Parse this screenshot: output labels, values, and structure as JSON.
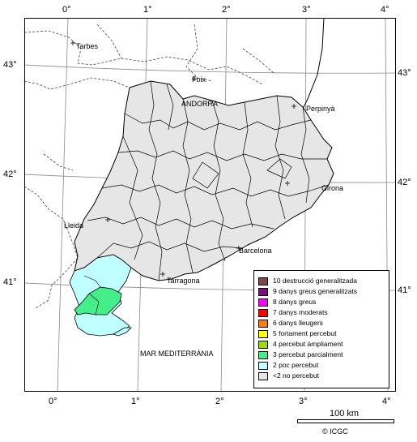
{
  "axes": {
    "top_ticks": [
      "0°",
      "1°",
      "2°",
      "3°",
      "4°"
    ],
    "bottom_ticks": [
      "0°",
      "1°",
      "2°",
      "3°",
      "4°"
    ],
    "left_ticks": [
      "43°",
      "42°",
      "41°"
    ],
    "right_ticks": [
      "43°",
      "42°",
      "41°"
    ]
  },
  "places": {
    "tarbes": "Tarbes",
    "foix": "Foix",
    "andorra": "ANDORRA",
    "perpinya": "Perpinyà",
    "girona": "Girona",
    "lleida": "Lleida",
    "barcelona": "Barcelona",
    "tarragona": "Tarragona",
    "sea": "MAR MEDITERRÀNIA"
  },
  "legend": [
    {
      "label": "10 destrucció generalitzada",
      "color": "#7a4a46"
    },
    {
      "label": "9 danys greus generalitzats",
      "color": "#7a0e7a"
    },
    {
      "label": "8 danys greus",
      "color": "#ff00ff"
    },
    {
      "label": "7 danys moderats",
      "color": "#ff0000"
    },
    {
      "label": "6 danys lleugers",
      "color": "#ff8000"
    },
    {
      "label": "5 fortament percebut",
      "color": "#ffff00"
    },
    {
      "label": "4 percebut àmpliament",
      "color": "#a0e000"
    },
    {
      "label": "3 percebut parcialment",
      "color": "#44ee88"
    },
    {
      "label": "2 poc percebut",
      "color": "#bfffff"
    },
    {
      "label": "<2 no percebut",
      "color": "#e6e6e6"
    }
  ],
  "scale": "100 km",
  "credit": "© ICGC",
  "colors": {
    "land": "#ffffff",
    "region_not_felt": "#e6e6e6",
    "region_weak": "#bfffff",
    "region_partial": "#44ee88",
    "border": "#000000"
  }
}
